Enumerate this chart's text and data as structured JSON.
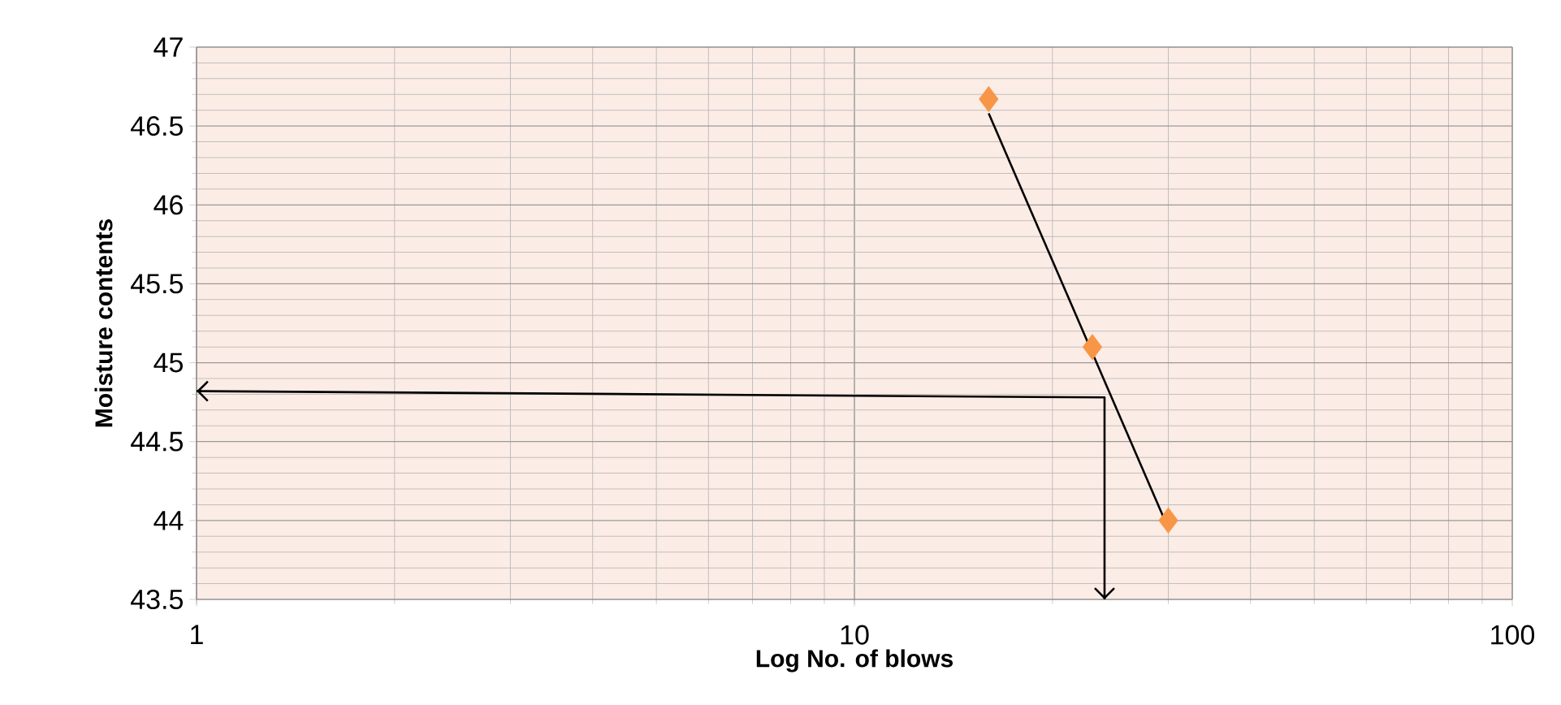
{
  "chart_data": {
    "type": "scatter",
    "xlabel": "Log No. of blows",
    "ylabel": "Moisture contents",
    "log": "x",
    "grid": true,
    "marker": "diamond",
    "xlim": [
      1,
      100
    ],
    "xticks": [
      1,
      10,
      100
    ],
    "ylim": [
      43.5,
      47
    ],
    "yticks": [
      43.5,
      44,
      44.5,
      45,
      45.5,
      46,
      46.5,
      47
    ],
    "series": [
      {
        "color": "#f79646",
        "x": [
          16,
          23,
          30
        ],
        "values": [
          46.67,
          45.1,
          44.0
        ]
      },
      {
        "type": "line",
        "color": "#000000",
        "marker": "none",
        "x": [
          16,
          30
        ],
        "values": [
          46.58,
          43.95
        ]
      },
      {
        "type": "line",
        "color": "#000000",
        "marker": "none",
        "x": [
          1,
          24,
          24
        ],
        "values": [
          44.82,
          44.78,
          43.5
        ]
      }
    ]
  }
}
